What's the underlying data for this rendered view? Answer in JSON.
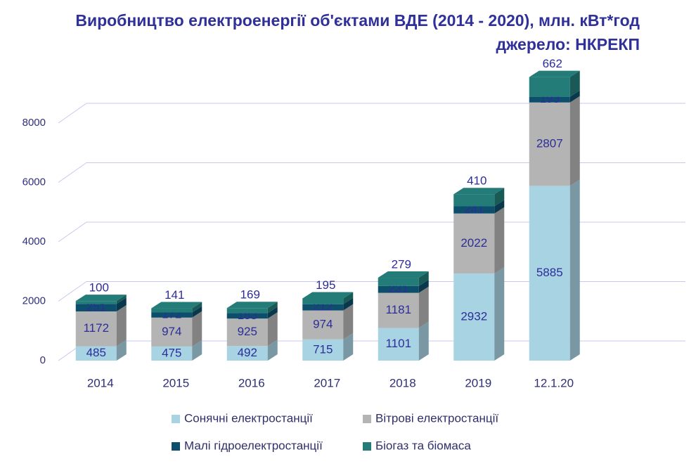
{
  "chart_data": {
    "type": "bar",
    "stacked": true,
    "title": "Виробництво електроенергії об'єктами ВДЕ (2014 - 2020), млн. кВт*год",
    "subtitle": "джерело: НКРЕКП",
    "categories": [
      "2014",
      "2015",
      "2016",
      "2017",
      "2018",
      "2019",
      "12.1.20"
    ],
    "series": [
      {
        "name": "Сонячні електростанції",
        "color": "#a8d3e2",
        "values": [
          485,
          475,
          492,
          715,
          1101,
          2932,
          5885
        ]
      },
      {
        "name": "Вітрові електростанції",
        "color": "#b4b4b4",
        "values": [
          1172,
          974,
          925,
          974,
          1181,
          2022,
          2807
        ]
      },
      {
        "name": "Малі гідроелектростанції",
        "color": "#0c4e6b",
        "values": [
          251,
          172,
          183,
          212,
          231,
          241,
          193
        ]
      },
      {
        "name": "Біогаз та біомаса",
        "color": "#237c78",
        "values": [
          100,
          141,
          169,
          195,
          279,
          410,
          662
        ]
      }
    ],
    "ylim": [
      0,
      10000
    ],
    "yticks": [
      0,
      2000,
      4000,
      6000,
      8000
    ],
    "grid": true
  }
}
